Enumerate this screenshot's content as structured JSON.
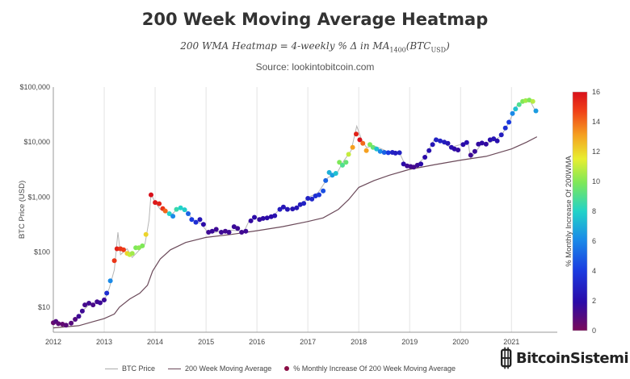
{
  "header": {
    "title": "200 Week Moving Average Heatmap",
    "formula_prefix": "200 WMA Heatmap = 4-weekly % Δ in MA",
    "formula_sub1": "1400",
    "formula_mid": "(BTC",
    "formula_sub2": "USD",
    "formula_suffix": ")",
    "source": "Source: lookintobitcoin.com"
  },
  "colors": {
    "price_line": "#b5b5b5",
    "ma_line": "#6b4a5a",
    "grid": "#e3e3e3"
  },
  "chart_data": {
    "type": "scatter",
    "title": "200 Week Moving Average Heatmap",
    "ylabel": "BTC Price (USD)",
    "xlabel": "",
    "yscale": "log",
    "ylim": [
      3.5,
      100000
    ],
    "xlim": [
      2012.0,
      2021.9
    ],
    "y_ticks": [
      {
        "value": 10,
        "label": "$10"
      },
      {
        "value": 100,
        "label": "$100"
      },
      {
        "value": 1000,
        "label": "$1,000"
      },
      {
        "value": 10000,
        "label": "$10,000"
      },
      {
        "value": 100000,
        "label": "$100,000"
      }
    ],
    "x_ticks": [
      {
        "value": 2012,
        "label": "2012"
      },
      {
        "value": 2013,
        "label": "2013"
      },
      {
        "value": 2014,
        "label": "2014"
      },
      {
        "value": 2015,
        "label": "2015"
      },
      {
        "value": 2016,
        "label": "2016"
      },
      {
        "value": 2017,
        "label": "2017"
      },
      {
        "value": 2018,
        "label": "2018"
      },
      {
        "value": 2019,
        "label": "2019"
      },
      {
        "value": 2020,
        "label": "2020"
      },
      {
        "value": 2021,
        "label": "2021"
      }
    ],
    "colorbar": {
      "label": "% Monthly Increase Of 200WMA",
      "min": 0,
      "max": 16,
      "ticks": [
        0,
        2,
        4,
        6,
        8,
        10,
        12,
        14,
        16
      ]
    },
    "legend": [
      "BTC Price",
      "200 Week Moving Average",
      "% Monthly Increase Of 200 Week Moving Average"
    ],
    "ma_series": {
      "name": "200 Week Moving Average",
      "points": [
        [
          2012.0,
          4.2
        ],
        [
          2012.5,
          4.6
        ],
        [
          2012.8,
          5.5
        ],
        [
          2013.0,
          6.2
        ],
        [
          2013.2,
          7.5
        ],
        [
          2013.3,
          10
        ],
        [
          2013.5,
          14
        ],
        [
          2013.7,
          18
        ],
        [
          2013.85,
          25
        ],
        [
          2013.95,
          45
        ],
        [
          2014.1,
          75
        ],
        [
          2014.3,
          110
        ],
        [
          2014.6,
          150
        ],
        [
          2015.0,
          185
        ],
        [
          2015.5,
          210
        ],
        [
          2016.0,
          245
        ],
        [
          2016.5,
          290
        ],
        [
          2017.0,
          360
        ],
        [
          2017.3,
          420
        ],
        [
          2017.6,
          600
        ],
        [
          2017.8,
          900
        ],
        [
          2018.0,
          1500
        ],
        [
          2018.3,
          2000
        ],
        [
          2018.6,
          2500
        ],
        [
          2019.0,
          3200
        ],
        [
          2019.5,
          3900
        ],
        [
          2020.0,
          4700
        ],
        [
          2020.5,
          5500
        ],
        [
          2021.0,
          7500
        ],
        [
          2021.3,
          10000
        ],
        [
          2021.5,
          12500
        ]
      ]
    },
    "price_series": {
      "name": "BTC Price",
      "points": [
        [
          2012.0,
          5.5
        ],
        [
          2012.1,
          5
        ],
        [
          2012.2,
          4.8
        ],
        [
          2012.35,
          5.1
        ],
        [
          2012.5,
          6.5
        ],
        [
          2012.6,
          9
        ],
        [
          2012.7,
          11
        ],
        [
          2012.8,
          11.5
        ],
        [
          2012.9,
          12.5
        ],
        [
          2013.0,
          13
        ],
        [
          2013.1,
          22
        ],
        [
          2013.2,
          48
        ],
        [
          2013.27,
          230
        ],
        [
          2013.32,
          90
        ],
        [
          2013.45,
          115
        ],
        [
          2013.55,
          80
        ],
        [
          2013.65,
          100
        ],
        [
          2013.8,
          140
        ],
        [
          2013.88,
          380
        ],
        [
          2013.92,
          1150
        ],
        [
          2014.0,
          800
        ],
        [
          2014.1,
          600
        ],
        [
          2014.2,
          560
        ],
        [
          2014.3,
          460
        ],
        [
          2014.45,
          620
        ],
        [
          2014.6,
          580
        ],
        [
          2014.75,
          380
        ],
        [
          2014.9,
          330
        ],
        [
          2015.05,
          220
        ],
        [
          2015.3,
          240
        ],
        [
          2015.5,
          250
        ],
        [
          2015.75,
          240
        ],
        [
          2015.85,
          380
        ],
        [
          2016.0,
          420
        ],
        [
          2016.3,
          440
        ],
        [
          2016.5,
          670
        ],
        [
          2016.7,
          610
        ],
        [
          2016.9,
          760
        ],
        [
          2017.0,
          980
        ],
        [
          2017.2,
          1200
        ],
        [
          2017.4,
          2300
        ],
        [
          2017.55,
          2500
        ],
        [
          2017.7,
          4500
        ],
        [
          2017.85,
          7000
        ],
        [
          2017.96,
          19500
        ],
        [
          2018.05,
          11500
        ],
        [
          2018.15,
          8000
        ],
        [
          2018.3,
          8500
        ],
        [
          2018.45,
          7500
        ],
        [
          2018.6,
          6500
        ],
        [
          2018.8,
          6400
        ],
        [
          2018.92,
          3700
        ],
        [
          2019.1,
          3600
        ],
        [
          2019.3,
          5300
        ],
        [
          2019.5,
          12000
        ],
        [
          2019.6,
          10500
        ],
        [
          2019.8,
          8000
        ],
        [
          2020.0,
          9000
        ],
        [
          2020.15,
          9500
        ],
        [
          2020.2,
          5000
        ],
        [
          2020.4,
          9000
        ],
        [
          2020.6,
          10000
        ],
        [
          2020.8,
          13000
        ],
        [
          2020.95,
          23000
        ],
        [
          2021.1,
          45000
        ],
        [
          2021.28,
          58000
        ],
        [
          2021.35,
          60000
        ],
        [
          2021.45,
          40000
        ],
        [
          2021.5,
          35000
        ]
      ]
    },
    "heat_points": [
      [
        2012.0,
        5.2,
        0.5
      ],
      [
        2012.05,
        5.5,
        1
      ],
      [
        2012.1,
        5,
        0.7
      ],
      [
        2012.18,
        4.9,
        0.6
      ],
      [
        2012.25,
        4.7,
        0.8
      ],
      [
        2012.35,
        5.1,
        0.9
      ],
      [
        2012.43,
        6,
        1
      ],
      [
        2012.5,
        6.8,
        1.5
      ],
      [
        2012.57,
        8.5,
        1.5
      ],
      [
        2012.62,
        11,
        1.3
      ],
      [
        2012.7,
        11.8,
        1.4
      ],
      [
        2012.78,
        11,
        1.2
      ],
      [
        2012.86,
        12.5,
        1.4
      ],
      [
        2012.92,
        12,
        1.5
      ],
      [
        2013.0,
        13.5,
        1.6
      ],
      [
        2013.05,
        18,
        3.5
      ],
      [
        2013.12,
        30,
        6
      ],
      [
        2013.2,
        70,
        15
      ],
      [
        2013.25,
        115,
        15.5
      ],
      [
        2013.32,
        115,
        15
      ],
      [
        2013.38,
        110,
        14.8
      ],
      [
        2013.45,
        95,
        12
      ],
      [
        2013.5,
        90,
        11
      ],
      [
        2013.55,
        95,
        10.5
      ],
      [
        2013.62,
        120,
        10
      ],
      [
        2013.68,
        120,
        10.2
      ],
      [
        2013.75,
        130,
        10
      ],
      [
        2013.82,
        210,
        12
      ],
      [
        2013.92,
        1100,
        16
      ],
      [
        2014.0,
        800,
        15.8
      ],
      [
        2014.08,
        760,
        15.5
      ],
      [
        2014.15,
        620,
        15
      ],
      [
        2014.2,
        560,
        14
      ],
      [
        2014.28,
        500,
        8
      ],
      [
        2014.35,
        450,
        6
      ],
      [
        2014.42,
        600,
        8.5
      ],
      [
        2014.5,
        640,
        8
      ],
      [
        2014.58,
        590,
        7.8
      ],
      [
        2014.65,
        500,
        5
      ],
      [
        2014.72,
        390,
        4
      ],
      [
        2014.8,
        350,
        3.5
      ],
      [
        2014.88,
        390,
        2.5
      ],
      [
        2014.95,
        320,
        2
      ],
      [
        2015.05,
        230,
        1.5
      ],
      [
        2015.12,
        240,
        1.6
      ],
      [
        2015.2,
        260,
        1.5
      ],
      [
        2015.3,
        230,
        1.5
      ],
      [
        2015.38,
        240,
        1.4
      ],
      [
        2015.45,
        230,
        1.5
      ],
      [
        2015.55,
        290,
        1.6
      ],
      [
        2015.62,
        270,
        1.5
      ],
      [
        2015.7,
        230,
        1.4
      ],
      [
        2015.78,
        240,
        1.5
      ],
      [
        2015.88,
        370,
        1.8
      ],
      [
        2015.95,
        430,
        2
      ],
      [
        2016.05,
        390,
        1.8
      ],
      [
        2016.12,
        410,
        1.9
      ],
      [
        2016.2,
        420,
        2
      ],
      [
        2016.28,
        440,
        2
      ],
      [
        2016.35,
        460,
        2.3
      ],
      [
        2016.45,
        600,
        2.8
      ],
      [
        2016.52,
        660,
        2.5
      ],
      [
        2016.6,
        600,
        2.5
      ],
      [
        2016.7,
        610,
        2.4
      ],
      [
        2016.78,
        640,
        2.5
      ],
      [
        2016.85,
        730,
        2.8
      ],
      [
        2016.92,
        770,
        3
      ],
      [
        2017.0,
        950,
        3
      ],
      [
        2017.08,
        920,
        3.2
      ],
      [
        2017.15,
        1050,
        3.5
      ],
      [
        2017.22,
        1100,
        3.8
      ],
      [
        2017.3,
        1300,
        4.5
      ],
      [
        2017.35,
        2000,
        5
      ],
      [
        2017.42,
        2800,
        7
      ],
      [
        2017.48,
        2500,
        6.5
      ],
      [
        2017.55,
        2700,
        7.5
      ],
      [
        2017.62,
        4300,
        10
      ],
      [
        2017.68,
        3800,
        9
      ],
      [
        2017.75,
        4300,
        9.5
      ],
      [
        2017.8,
        6000,
        11
      ],
      [
        2017.88,
        8000,
        13
      ],
      [
        2017.95,
        14000,
        15.5
      ],
      [
        2018.02,
        11000,
        16
      ],
      [
        2018.08,
        9500,
        14
      ],
      [
        2018.15,
        7000,
        13
      ],
      [
        2018.22,
        9000,
        10
      ],
      [
        2018.28,
        8000,
        9.5
      ],
      [
        2018.35,
        7500,
        7.5
      ],
      [
        2018.42,
        6800,
        6
      ],
      [
        2018.5,
        6500,
        5
      ],
      [
        2018.58,
        6400,
        4
      ],
      [
        2018.66,
        6500,
        3
      ],
      [
        2018.72,
        6300,
        2.8
      ],
      [
        2018.8,
        6400,
        3
      ],
      [
        2018.88,
        4000,
        2
      ],
      [
        2018.95,
        3700,
        1.5
      ],
      [
        2019.02,
        3600,
        1.4
      ],
      [
        2019.08,
        3500,
        1.3
      ],
      [
        2019.15,
        3800,
        1.5
      ],
      [
        2019.22,
        4000,
        2
      ],
      [
        2019.3,
        5300,
        2
      ],
      [
        2019.38,
        7000,
        2.3
      ],
      [
        2019.45,
        9000,
        2.5
      ],
      [
        2019.52,
        11000,
        3
      ],
      [
        2019.6,
        10500,
        3
      ],
      [
        2019.68,
        10000,
        2.8
      ],
      [
        2019.75,
        9500,
        2.5
      ],
      [
        2019.82,
        8000,
        2.2
      ],
      [
        2019.88,
        7500,
        2
      ],
      [
        2019.95,
        7200,
        1.8
      ],
      [
        2020.05,
        9000,
        2
      ],
      [
        2020.12,
        9800,
        2.2
      ],
      [
        2020.2,
        5800,
        1.5
      ],
      [
        2020.28,
        6800,
        1.6
      ],
      [
        2020.35,
        9200,
        1.8
      ],
      [
        2020.42,
        9600,
        1.9
      ],
      [
        2020.5,
        9200,
        1.8
      ],
      [
        2020.58,
        11000,
        2.2
      ],
      [
        2020.65,
        11500,
        2.4
      ],
      [
        2020.72,
        10500,
        2.2
      ],
      [
        2020.8,
        13500,
        2.8
      ],
      [
        2020.88,
        18000,
        3.5
      ],
      [
        2020.95,
        23000,
        4
      ],
      [
        2021.02,
        33000,
        6
      ],
      [
        2021.08,
        40000,
        7.5
      ],
      [
        2021.15,
        48000,
        9
      ],
      [
        2021.22,
        55000,
        10
      ],
      [
        2021.28,
        57000,
        10.5
      ],
      [
        2021.35,
        58000,
        10
      ],
      [
        2021.42,
        55000,
        10.8
      ],
      [
        2021.48,
        37000,
        6.5
      ]
    ]
  },
  "watermark": {
    "text": "BitcoinSistemi",
    "icon": "bitcoin-icon"
  }
}
